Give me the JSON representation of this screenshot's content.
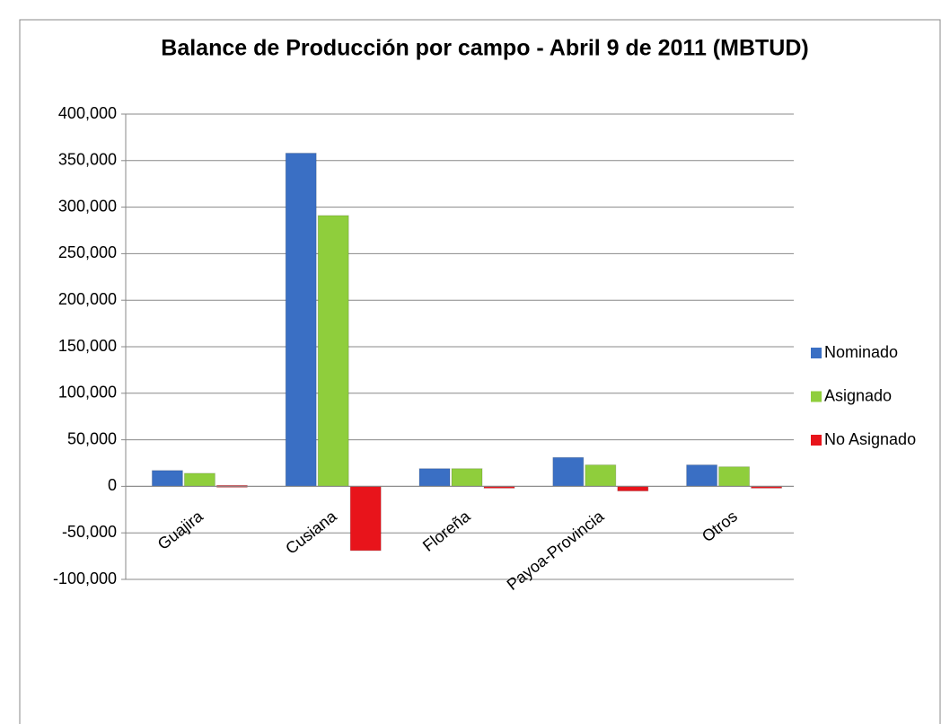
{
  "chart_data": {
    "type": "bar",
    "title": "Balance de Producción por campo - Abril 9 de 2011  (MBTUD)",
    "categories": [
      "Guajira",
      "Cusiana",
      "Floreña",
      "Payoa-Provincia",
      "Otros"
    ],
    "series": [
      {
        "name": "Nominado",
        "color": "#3a6fc4",
        "values": [
          17000,
          358000,
          19000,
          31000,
          23000
        ]
      },
      {
        "name": "Asignado",
        "color": "#8fce3c",
        "values": [
          14000,
          291000,
          19000,
          23000,
          21000
        ]
      },
      {
        "name": "No Asignado",
        "color": "#e8141b",
        "values": [
          1000,
          -69000,
          0,
          -5000,
          0
        ]
      }
    ],
    "ylim": [
      -100000,
      400000
    ],
    "yticks": [
      {
        "value": -100000,
        "label": "-100,000"
      },
      {
        "value": -50000,
        "label": "-50,000"
      },
      0,
      {
        "value": 50000,
        "label": "50,000"
      },
      {
        "value": 100000,
        "label": "100,000"
      },
      {
        "value": 150000,
        "label": "150,000"
      },
      {
        "value": 200000,
        "label": "200,000"
      },
      {
        "value": 250000,
        "label": "250,000"
      },
      {
        "value": 300000,
        "label": "300,000"
      },
      {
        "value": 350000,
        "label": "350,000"
      },
      {
        "value": 400000,
        "label": "400,000"
      }
    ],
    "grid": true,
    "legend": "right"
  }
}
